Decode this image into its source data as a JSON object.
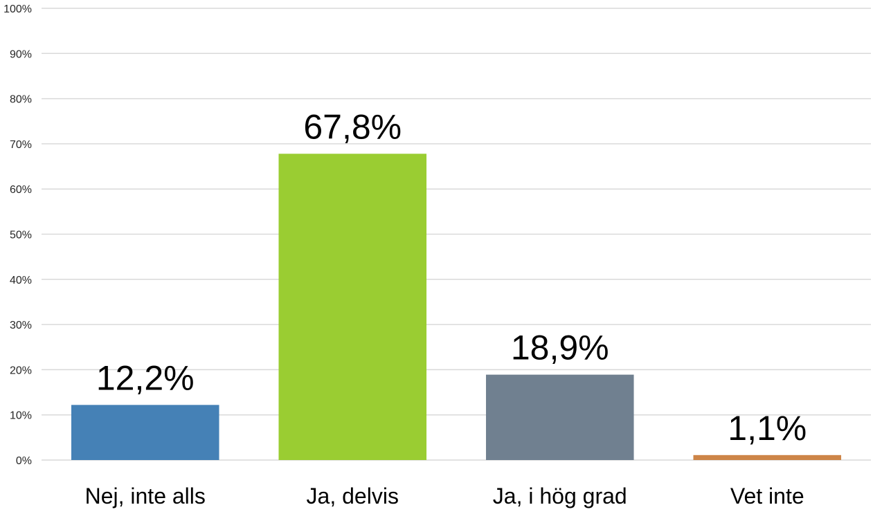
{
  "chart_data": {
    "type": "bar",
    "categories": [
      "Nej, inte alls",
      "Ja, delvis",
      "Ja, i hög grad",
      "Vet inte"
    ],
    "values": [
      12.2,
      67.8,
      18.9,
      1.1
    ],
    "data_labels": [
      "12,2%",
      "67,8%",
      "18,9%",
      "1,1%"
    ],
    "colors": [
      "#4581b6",
      "#9acd32",
      "#708090",
      "#cd8548"
    ],
    "title": "",
    "xlabel": "",
    "ylabel": "",
    "ylim": [
      0,
      100
    ],
    "y_ticks": [
      0,
      10,
      20,
      30,
      40,
      50,
      60,
      70,
      80,
      90,
      100
    ],
    "y_tick_labels": [
      "0%",
      "10%",
      "20%",
      "30%",
      "40%",
      "50%",
      "60%",
      "70%",
      "80%",
      "90%",
      "100%"
    ],
    "grid": true,
    "legend": "none"
  }
}
